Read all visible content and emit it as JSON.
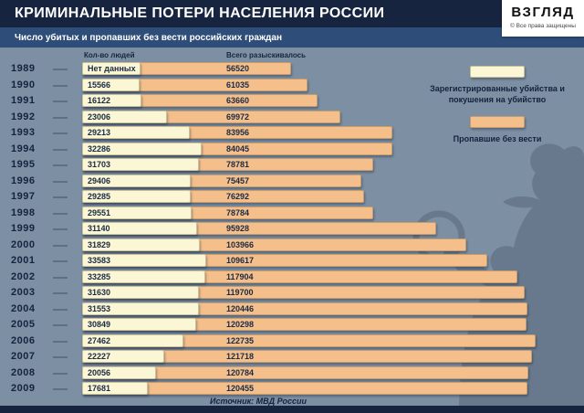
{
  "header": {
    "title": "КРИМИНАЛЬНЫЕ ПОТЕРИ НАСЕЛЕНИЯ РОССИИ",
    "logo": {
      "name": "ВЗГЛЯД",
      "copyright": "© Все права защищены"
    }
  },
  "subtitle": "Число убитых и пропавших без вести российских граждан",
  "chart_data": {
    "type": "bar",
    "orientation": "horizontal",
    "title": "КРИМИНАЛЬНЫЕ ПОТЕРИ НАСЕЛЕНИЯ РОССИИ",
    "subtitle": "Число убитых и пропавших без вести российских граждан",
    "column_headers": {
      "left": "Кол-во людей",
      "right": "Всего разыскивалось"
    },
    "no_data_label": "Нет данных",
    "categories": [
      "1989",
      "1990",
      "1991",
      "1992",
      "1993",
      "1994",
      "1995",
      "1996",
      "1997",
      "1998",
      "1999",
      "2000",
      "2001",
      "2002",
      "2003",
      "2004",
      "2005",
      "2006",
      "2007",
      "2008",
      "2009"
    ],
    "series": [
      {
        "name": "Зарегистрированные убийства и покушения на убийство",
        "color": "#fbf6d3",
        "values": [
          null,
          15566,
          16122,
          23006,
          29213,
          32286,
          31703,
          29406,
          29285,
          29551,
          31140,
          31829,
          33583,
          33285,
          31630,
          31553,
          30849,
          27462,
          22227,
          20056,
          17681
        ]
      },
      {
        "name": "Пропавшие без вести",
        "color": "#f4bf8b",
        "values": [
          56520,
          61035,
          63660,
          69972,
          83956,
          84045,
          78781,
          75457,
          76292,
          78784,
          95928,
          103966,
          109617,
          117904,
          119700,
          120446,
          120298,
          122735,
          121718,
          120784,
          120455
        ]
      }
    ],
    "xmax": 122735,
    "grid": false,
    "legend_position": "right-top",
    "source": "Источник: МВД России"
  },
  "legend": {
    "items": [
      {
        "label": "Зарегистрированные убийства и покушения на убийство",
        "color": "#fbf6d3"
      },
      {
        "label": "Пропавшие без вести",
        "color": "#f4bf8b"
      }
    ]
  },
  "colors": {
    "header_bg": "#16243f",
    "subtitle_bg": "#2e4d78",
    "chart_bg": "#7d8fa2",
    "silhouette": "#68798d",
    "text_dark": "#14233e"
  }
}
